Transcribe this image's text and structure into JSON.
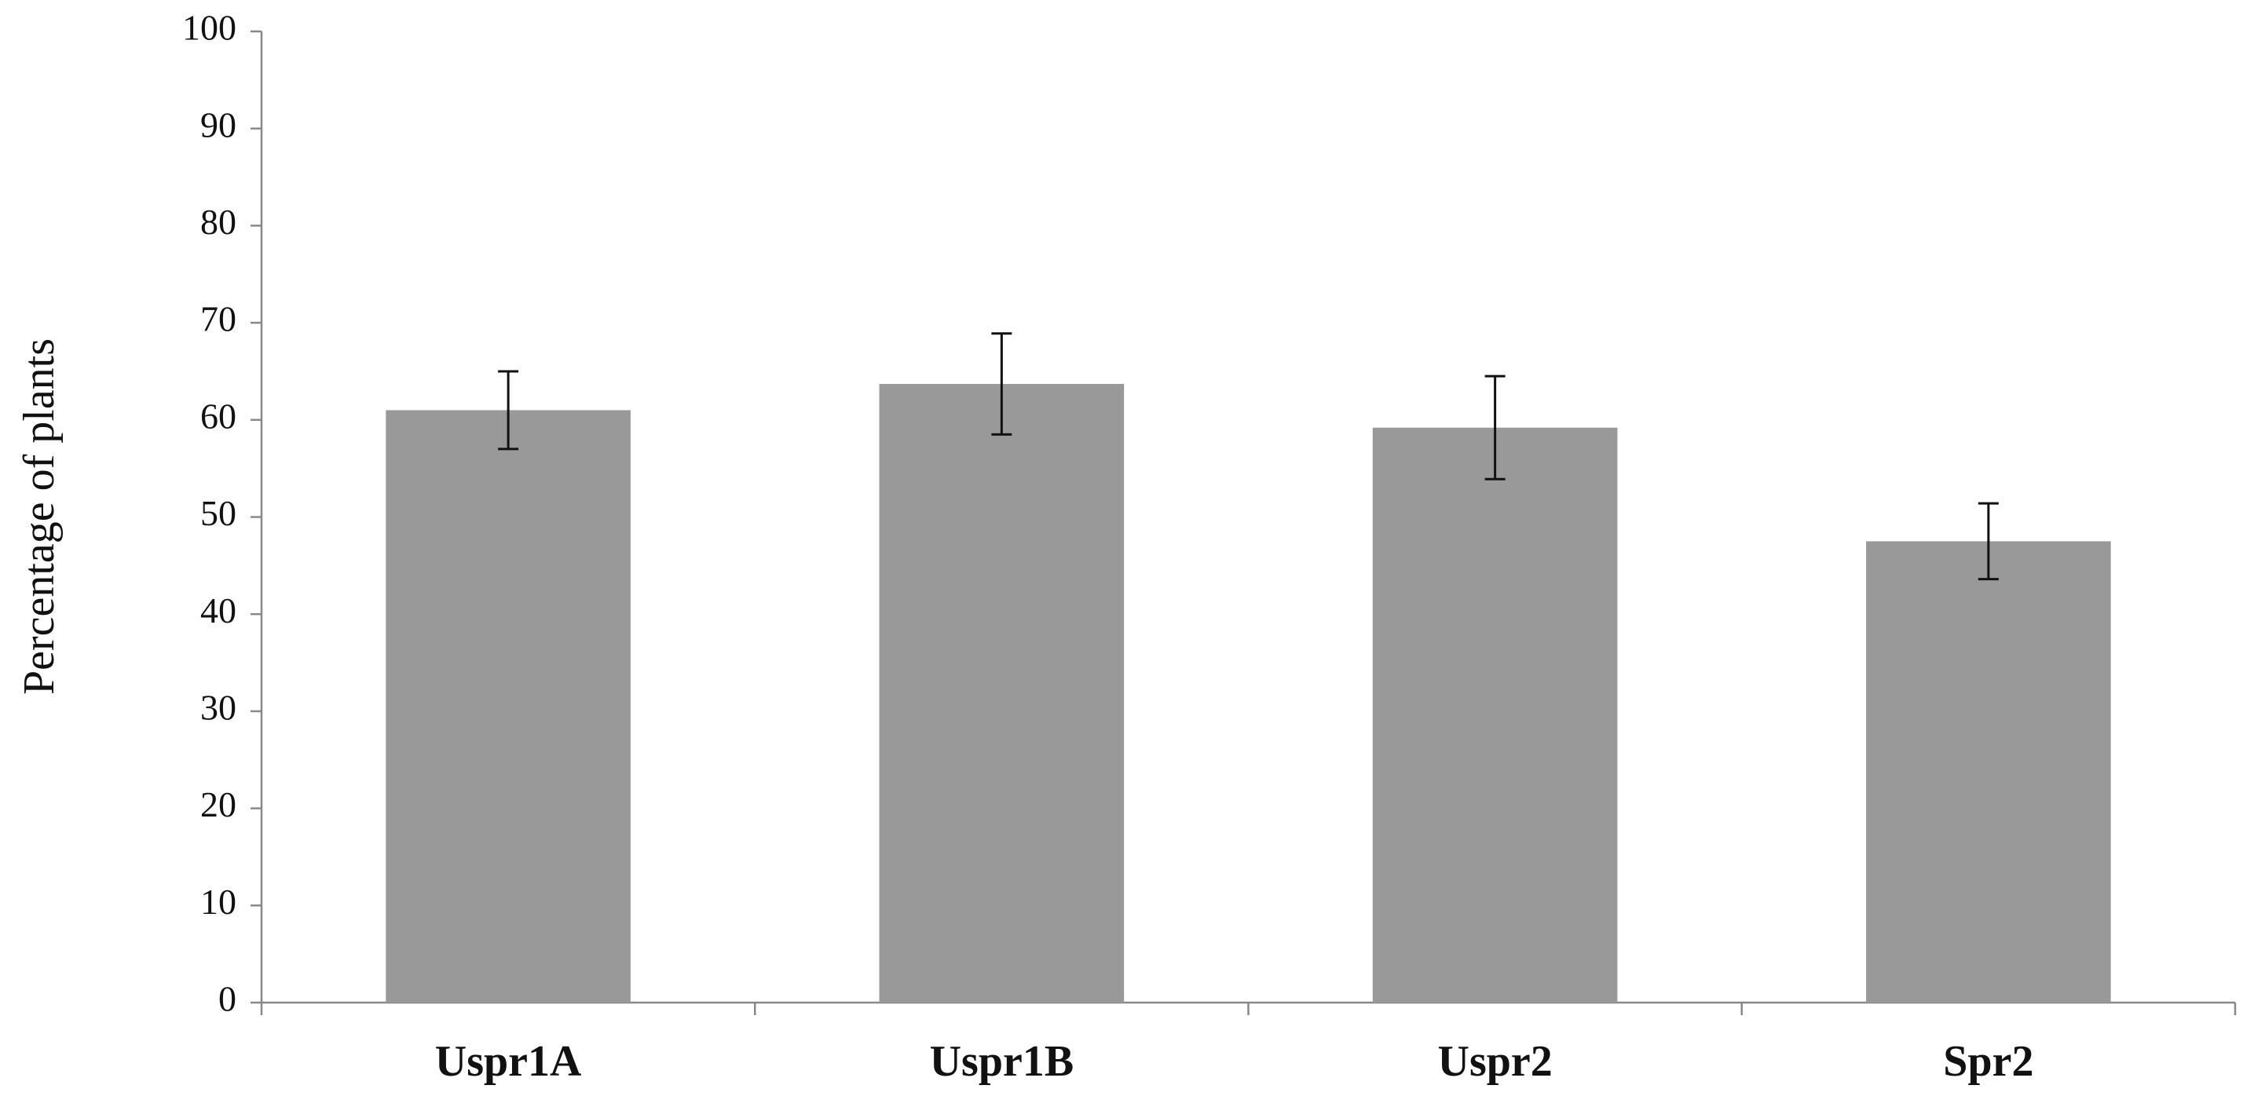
{
  "chart_data": {
    "type": "bar",
    "y_label": "Percentage of plants",
    "categories": [
      "Uspr1A",
      "Uspr1B",
      "Uspr2",
      "Spr2"
    ],
    "values": [
      61,
      63.7,
      59.2,
      47.5
    ],
    "errors": [
      4,
      5.2,
      5.3,
      3.9
    ],
    "color": "#999999",
    "ylim": [
      0,
      100
    ],
    "yticks": [
      0,
      10,
      20,
      30,
      40,
      50,
      60,
      70,
      80,
      90,
      100
    ],
    "grid": false
  }
}
